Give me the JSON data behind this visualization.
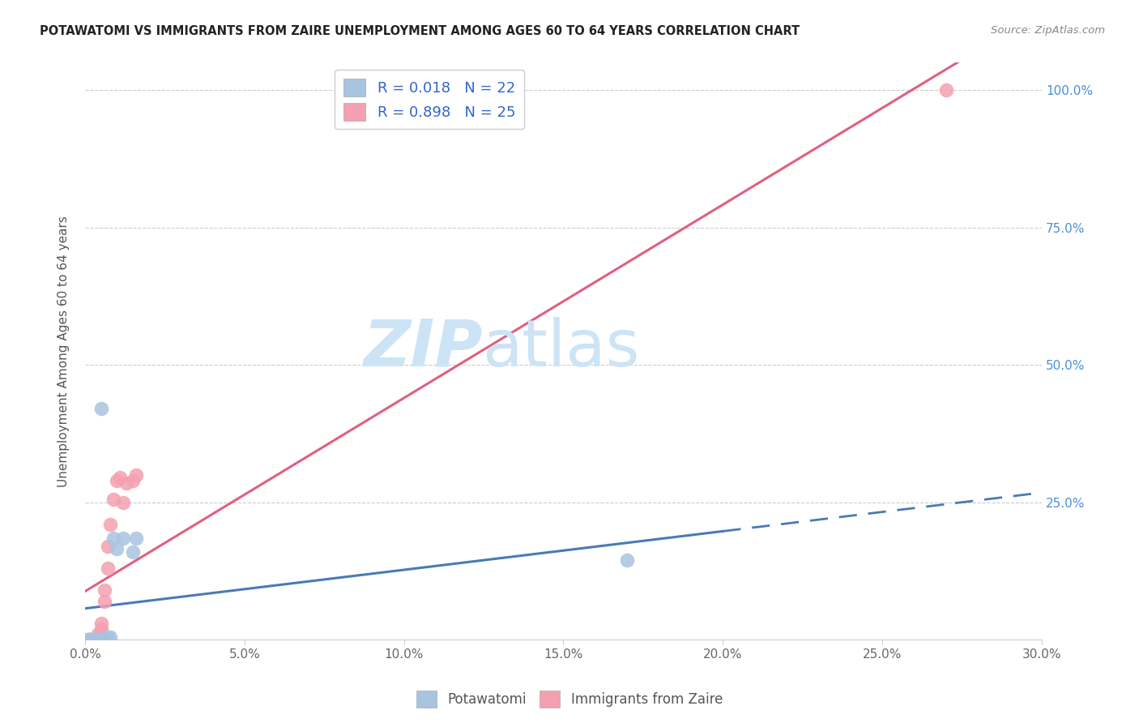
{
  "title": "POTAWATOMI VS IMMIGRANTS FROM ZAIRE UNEMPLOYMENT AMONG AGES 60 TO 64 YEARS CORRELATION CHART",
  "source": "Source: ZipAtlas.com",
  "ylabel": "Unemployment Among Ages 60 to 64 years",
  "xlim": [
    0.0,
    0.3
  ],
  "ylim": [
    0.0,
    1.05
  ],
  "xtick_labels": [
    "0.0%",
    "5.0%",
    "10.0%",
    "15.0%",
    "20.0%",
    "25.0%",
    "30.0%"
  ],
  "xtick_values": [
    0.0,
    0.05,
    0.1,
    0.15,
    0.2,
    0.25,
    0.3
  ],
  "ytick_labels": [
    "25.0%",
    "50.0%",
    "75.0%",
    "100.0%"
  ],
  "ytick_values": [
    0.25,
    0.5,
    0.75,
    1.0
  ],
  "legend_R1": "R = 0.018",
  "legend_N1": "N = 22",
  "legend_R2": "R = 0.898",
  "legend_N2": "N = 25",
  "color_blue": "#a8c4e0",
  "color_pink": "#f4a0b0",
  "line_color_blue": "#4a7ab5",
  "line_color_pink": "#e06080",
  "watermark_zip": "ZIP",
  "watermark_atlas": "atlas",
  "watermark_color": "#cce4f5",
  "pot_x": [
    0.001,
    0.001,
    0.002,
    0.002,
    0.002,
    0.003,
    0.003,
    0.003,
    0.004,
    0.004,
    0.005,
    0.005,
    0.006,
    0.007,
    0.008,
    0.009,
    0.01,
    0.012,
    0.015,
    0.016,
    0.17,
    0.005
  ],
  "pot_y": [
    0.0,
    0.0,
    0.0,
    0.0,
    0.0,
    0.0,
    0.0,
    0.0,
    0.0,
    0.0,
    0.0,
    0.0,
    0.0,
    0.005,
    0.005,
    0.185,
    0.165,
    0.185,
    0.16,
    0.185,
    0.145,
    0.42
  ],
  "zaire_x": [
    0.001,
    0.001,
    0.002,
    0.002,
    0.003,
    0.003,
    0.003,
    0.004,
    0.004,
    0.005,
    0.005,
    0.005,
    0.006,
    0.006,
    0.007,
    0.007,
    0.008,
    0.009,
    0.01,
    0.011,
    0.012,
    0.013,
    0.015,
    0.016,
    0.27
  ],
  "zaire_y": [
    0.0,
    0.0,
    0.0,
    0.0,
    0.0,
    0.0,
    0.0,
    0.0,
    0.01,
    0.01,
    0.02,
    0.03,
    0.07,
    0.09,
    0.13,
    0.17,
    0.21,
    0.255,
    0.29,
    0.295,
    0.25,
    0.285,
    0.29,
    0.3,
    1.0
  ],
  "pot_line_solid_end": 0.195,
  "pot_line_dash_start": 0.195
}
